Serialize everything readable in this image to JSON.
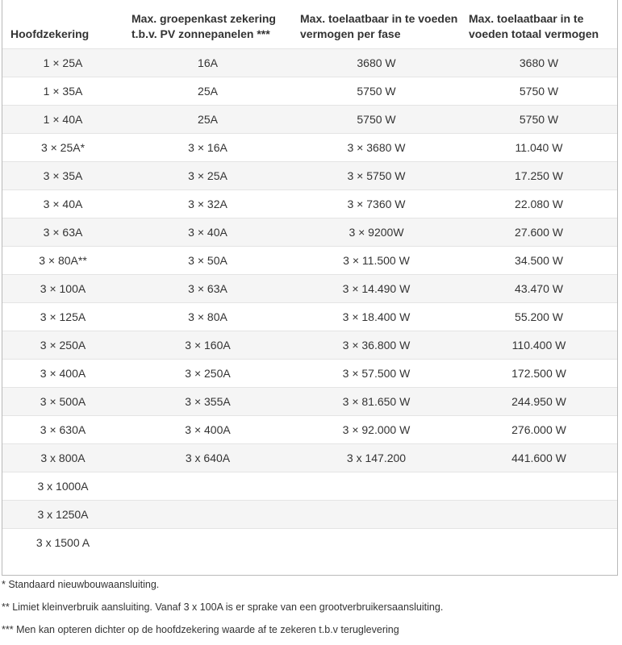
{
  "table": {
    "headers": [
      "Hoofdzekering",
      "Max. groepenkast zekering t.b.v. PV zonnepanelen ***",
      "Max. toelaatbaar in te voeden vermogen per fase",
      "Max. toelaatbaar in te voeden totaal vermogen"
    ],
    "rows": [
      [
        "1 × 25A",
        "16A",
        "3680 W",
        "3680 W"
      ],
      [
        "1 × 35A",
        "25A",
        "5750 W",
        "5750 W"
      ],
      [
        "1 × 40A",
        "25A",
        "5750 W",
        "5750 W"
      ],
      [
        "3 × 25A*",
        "3 × 16A",
        "3 × 3680 W",
        "11.040 W"
      ],
      [
        "3 × 35A",
        "3 × 25A",
        "3 × 5750 W",
        "17.250 W"
      ],
      [
        "3 × 40A",
        "3 × 32A",
        "3 × 7360 W",
        "22.080 W"
      ],
      [
        "3 × 63A",
        "3 × 40A",
        "3 × 9200W",
        "27.600 W"
      ],
      [
        "3 × 80A**",
        "3 × 50A",
        "3 × 11.500 W",
        "34.500 W"
      ],
      [
        "3 × 100A",
        "3 × 63A",
        "3 × 14.490 W",
        "43.470 W"
      ],
      [
        "3 × 125A",
        "3 × 80A",
        "3 × 18.400 W",
        "55.200 W"
      ],
      [
        "3 × 250A",
        "3 × 160A",
        "3 × 36.800 W",
        "110.400 W"
      ],
      [
        "3 × 400A",
        "3 × 250A",
        "3 × 57.500 W",
        "172.500 W"
      ],
      [
        "3 × 500A",
        "3 × 355A",
        "3 × 81.650 W",
        "244.950 W"
      ],
      [
        "3 × 630A",
        "3 × 400A",
        "3 × 92.000 W",
        "276.000 W"
      ],
      [
        "3 x 800A",
        "3 x 640A",
        "3 x 147.200",
        "441.600 W"
      ],
      [
        "3 x 1000A",
        "",
        "",
        ""
      ],
      [
        "3 x 1250A",
        "",
        "",
        ""
      ],
      [
        "3 x 1500 A",
        "",
        "",
        ""
      ]
    ]
  },
  "footnotes": [
    "* Standaard nieuwbouwaansluiting.",
    "** Limiet kleinverbruik aansluiting. Vanaf 3 x 100A is er sprake van een grootverbruikersaansluiting.",
    "*** Men kan opteren dichter op de hoofdzekering waarde af te zekeren t.b.v teruglevering"
  ]
}
